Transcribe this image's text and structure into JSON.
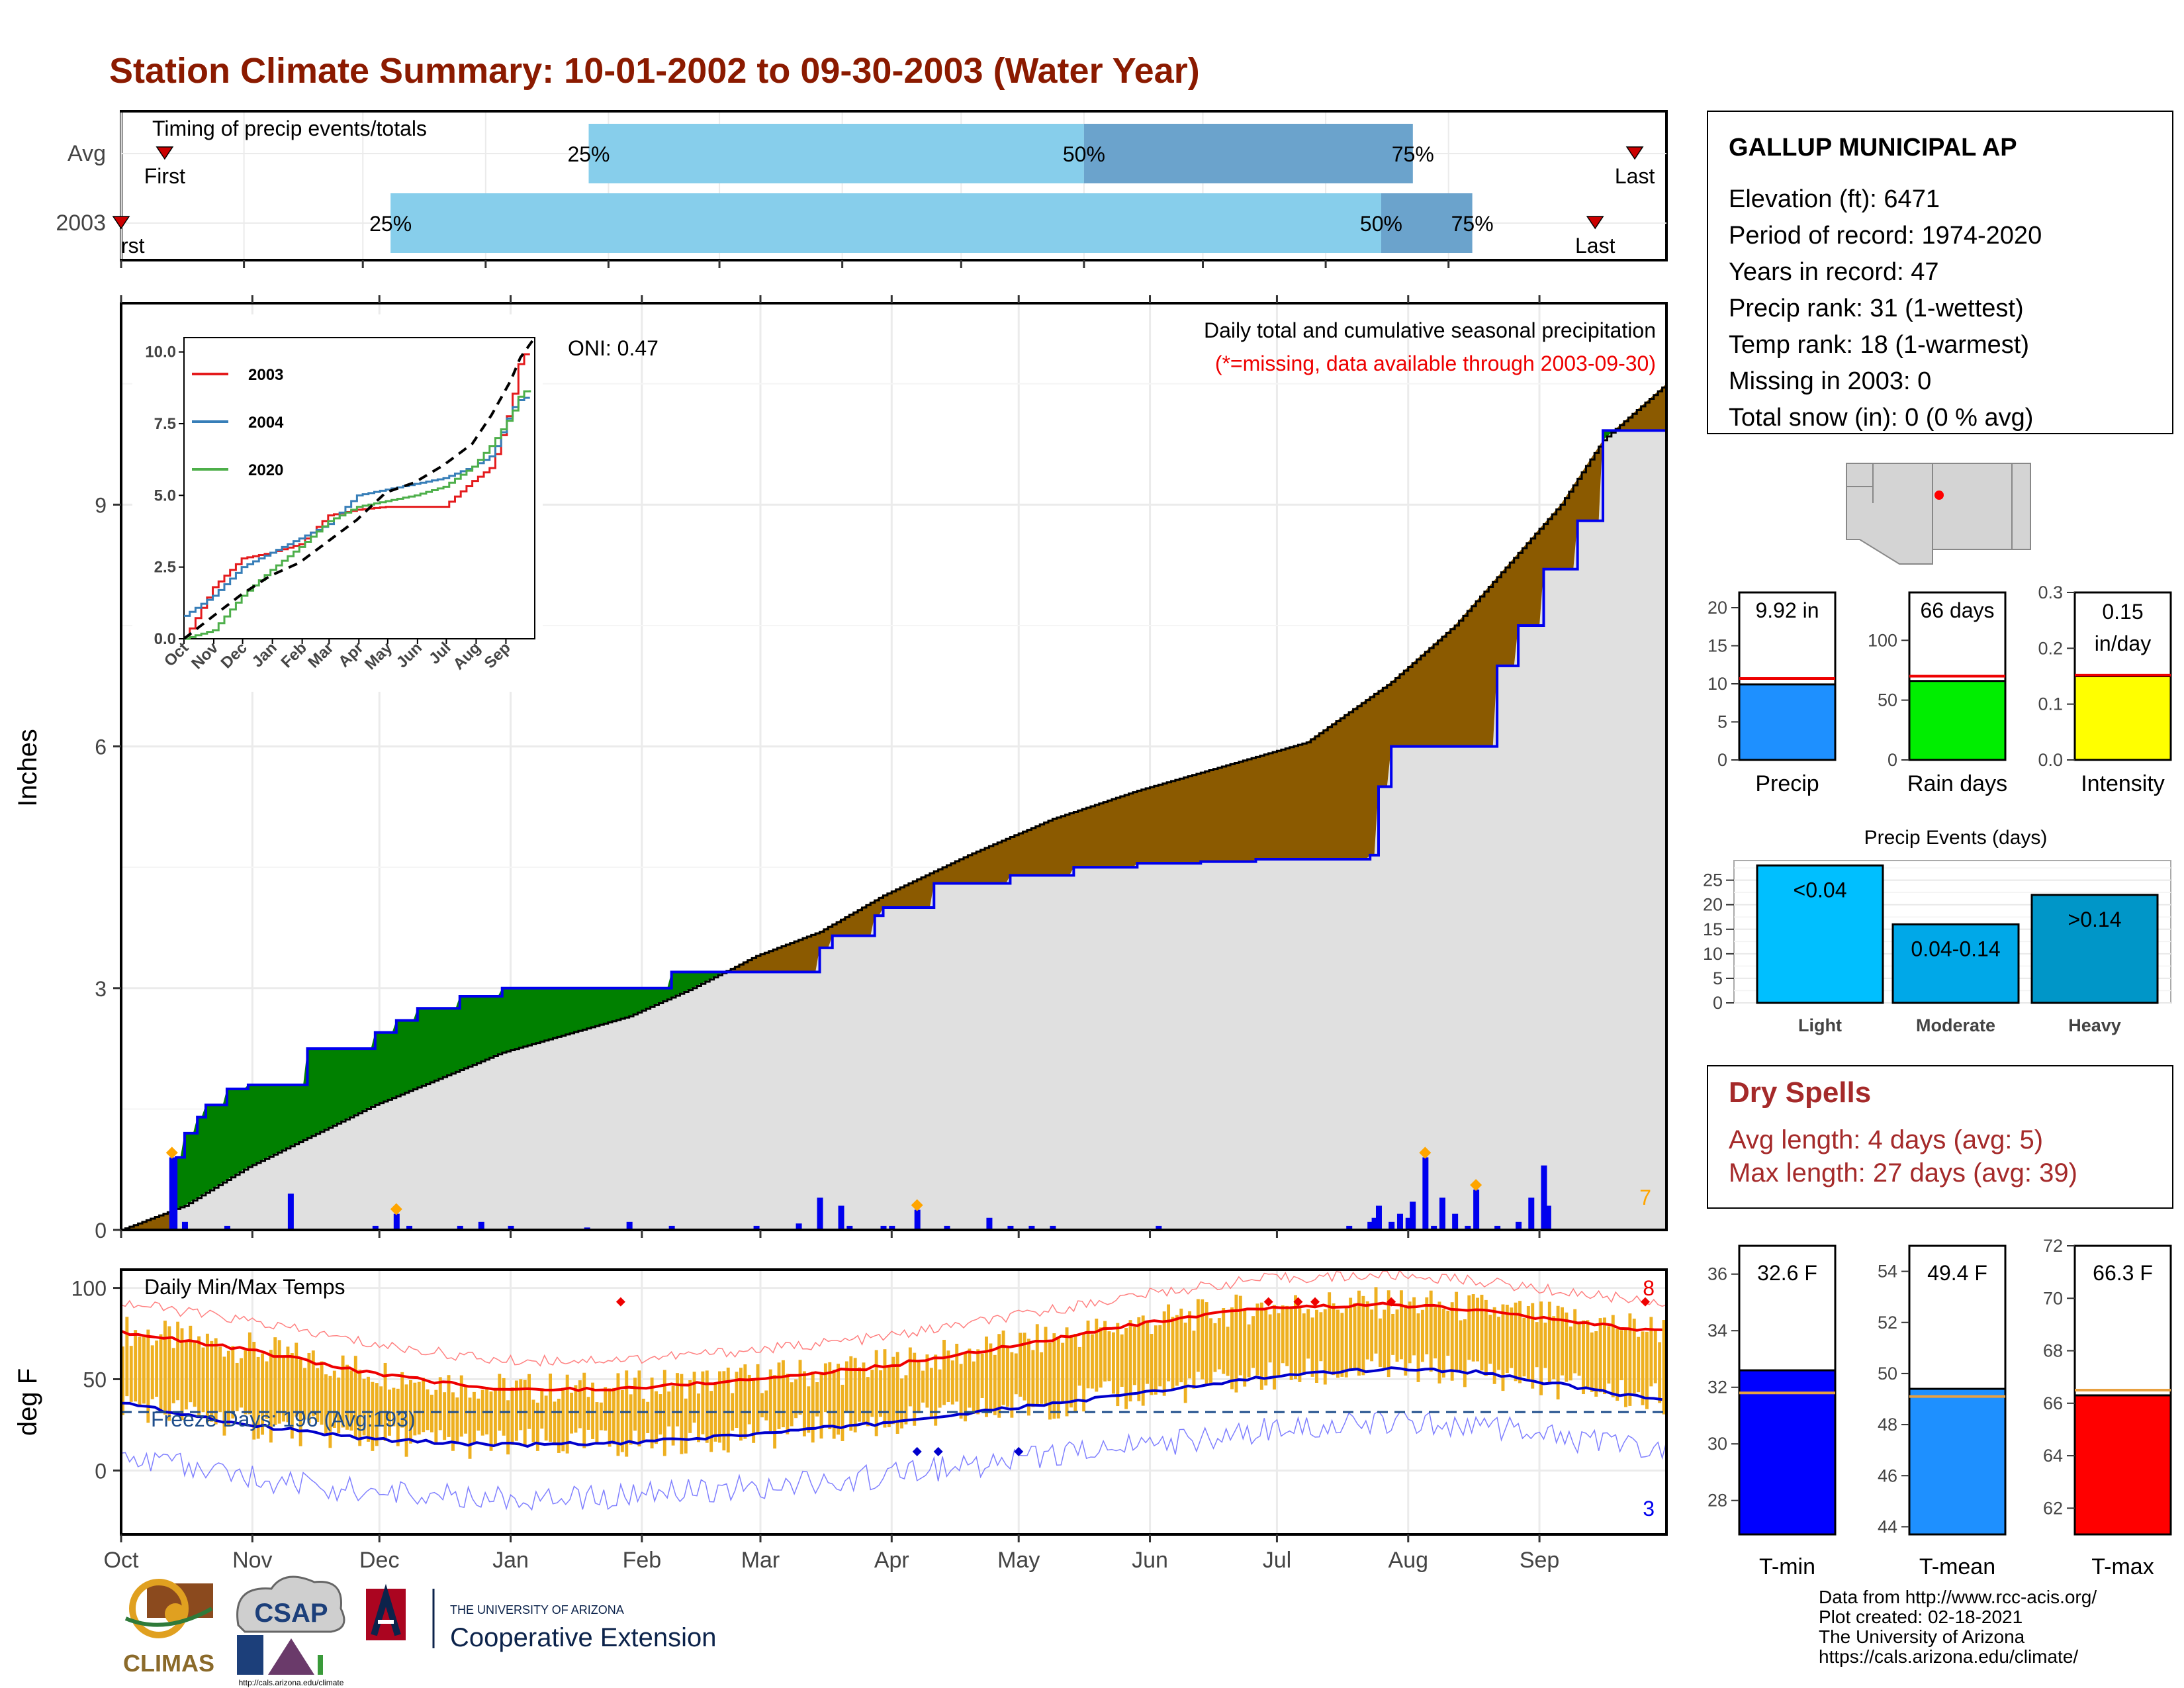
{
  "title": "Station Climate Summary: 10-01-2002 to 09-30-2003 (Water Year)",
  "colors": {
    "title": "#8B1A00",
    "brown": "#8B5A00",
    "green": "#008000",
    "blue": "#0000EE",
    "grey": "#E0E0E0",
    "orange": "#FFA500",
    "tempbar": "#EEB020",
    "red": "#EE0000",
    "lightblue": "#87CEEB",
    "midblue": "#6BA3CC",
    "darkred": "#A52A2A"
  },
  "timing": {
    "label": "Timing of precip events/totals",
    "rows": [
      "Avg",
      "2003"
    ],
    "pct_labels": [
      "25%",
      "50%",
      "75%"
    ],
    "first_label": "First",
    "first_label_2003": "rst",
    "last_label": "Last"
  },
  "station": {
    "name": "GALLUP MUNICIPAL AP",
    "lines": [
      "Elevation (ft): 6471",
      "Period of record: 1974-2020",
      "Years in record: 47",
      "Precip rank: 31 (1-wettest)",
      "Temp rank: 18 (1-warmest)",
      "Missing in 2003: 0",
      "Total snow (in): 0 (0 % avg)"
    ]
  },
  "main": {
    "ylabel": "Inches",
    "oni": "ONI: 0.47",
    "note1": "Daily total and cumulative seasonal precipitation",
    "note2": "(*=missing, data available through 2003-09-30)",
    "count_label": "7",
    "yticks": [
      "0",
      "3",
      "6",
      "9"
    ]
  },
  "inset": {
    "legend": [
      "2003",
      "2004",
      "2020"
    ],
    "yticks": [
      "0.0",
      "2.5",
      "5.0",
      "7.5",
      "10.0"
    ],
    "xticks": [
      "Oct",
      "Nov",
      "Dec",
      "Jan",
      "Feb",
      "Mar",
      "Apr",
      "May",
      "Jun",
      "Jul",
      "Aug",
      "Sep"
    ]
  },
  "months": [
    "Oct",
    "Nov",
    "Dec",
    "Jan",
    "Feb",
    "Mar",
    "Apr",
    "May",
    "Jun",
    "Jul",
    "Aug",
    "Sep"
  ],
  "temps": {
    "ylabel": "deg F",
    "label": "Daily Min/Max Temps",
    "freeze": "Freeze Days: 196 (Avg:193)",
    "high_count": "8",
    "low_count": "3",
    "yticks": [
      "0",
      "50",
      "100"
    ]
  },
  "small_bars": [
    {
      "label": "Precip",
      "value_text": "9.92 in",
      "yticks": [
        "0",
        "5",
        "10",
        "15",
        "20"
      ],
      "color": "#1E90FF"
    },
    {
      "label": "Rain days",
      "value_text": "66 days",
      "yticks": [
        "0",
        "50",
        "100"
      ],
      "color": "#00EE00"
    },
    {
      "label": "Intensity",
      "value_text": "0.15 in/day",
      "value_line1": "0.15",
      "value_line2": "in/day",
      "yticks": [
        "0.0",
        "0.1",
        "0.2",
        "0.3"
      ],
      "color": "#FFFF00"
    }
  ],
  "events": {
    "title": "Precip Events (days)",
    "yticks": [
      "0",
      "5",
      "10",
      "15",
      "20",
      "25"
    ],
    "bars": [
      {
        "cat": "Light",
        "label": "<0.04",
        "color": "#00BFFF"
      },
      {
        "cat": "Moderate",
        "label": "0.04-0.14",
        "color": "#00A8E8"
      },
      {
        "cat": "Heavy",
        "label": ">0.14",
        "color": "#0096C8"
      }
    ]
  },
  "dry": {
    "title": "Dry Spells",
    "line1": "Avg length: 4 days (avg: 5)",
    "line2": "Max length: 27 days (avg: 39)"
  },
  "temp_bars": [
    {
      "label": "T-min",
      "value_text": "32.6 F",
      "yticks": [
        "28",
        "30",
        "32",
        "34",
        "36"
      ],
      "color": "#0000FF"
    },
    {
      "label": "T-mean",
      "value_text": "49.4 F",
      "yticks": [
        "44",
        "46",
        "48",
        "50",
        "52",
        "54"
      ],
      "color": "#1E90FF"
    },
    {
      "label": "T-max",
      "value_text": "66.3 F",
      "yticks": [
        "62",
        "64",
        "66",
        "68",
        "70",
        "72"
      ],
      "color": "#FF0000"
    }
  ],
  "footer": {
    "lines": [
      "Data from http://www.rcc-acis.org/",
      "Plot created: 02-18-2021",
      "The University of Arizona",
      "https://cals.arizona.edu/climate/"
    ],
    "climas": "CLIMAS",
    "csap": "CSAP",
    "csap_url": "http://cals.arizona.edu/climate",
    "ua1": "THE UNIVERSITY OF ARIZONA",
    "ua2": "Cooperative Extension"
  },
  "chart_data": [
    {
      "type": "bar",
      "name": "timing",
      "categories": [
        "Avg",
        "2003"
      ],
      "series": [
        {
          "name": "Avg",
          "values": {
            "first": 11,
            "p25": 118,
            "p50": 243,
            "p75": 326,
            "last": 382
          }
        },
        {
          "name": "2003",
          "values": {
            "first": 0,
            "p25": 68,
            "p50": 318,
            "p75": 341,
            "last": 372
          }
        }
      ],
      "xlim": [
        0,
        390
      ]
    },
    {
      "type": "area",
      "name": "cumulative precipitation",
      "ylabel": "Inches",
      "ylim": [
        0,
        11.5
      ],
      "xlim": [
        0,
        365
      ],
      "avg_cumulative": {
        "x": [
          0,
          15,
          30,
          60,
          90,
          120,
          135,
          150,
          165,
          180,
          200,
          220,
          240,
          260,
          280,
          300,
          315,
          325,
          340,
          350,
          365
        ],
        "y": [
          0,
          0.3,
          0.78,
          1.55,
          2.2,
          2.65,
          3.0,
          3.4,
          3.7,
          4.15,
          4.65,
          5.1,
          5.45,
          5.75,
          6.05,
          6.8,
          7.5,
          8.1,
          9.0,
          9.8,
          10.5
        ]
      },
      "y2003_cumulative": {
        "x": [
          0,
          12,
          13,
          15,
          18,
          20,
          25,
          30,
          40,
          44,
          55,
          60,
          65,
          70,
          80,
          90,
          100,
          110,
          120,
          125,
          130,
          140,
          150,
          165,
          168,
          170,
          178,
          180,
          192,
          210,
          225,
          240,
          255,
          268,
          287,
          295,
          297,
          300,
          320,
          325,
          330,
          336,
          340,
          344,
          346,
          350,
          355,
          360,
          365
        ],
        "y": [
          0,
          0.02,
          0.9,
          1.2,
          1.4,
          1.55,
          1.75,
          1.8,
          1.8,
          2.25,
          2.25,
          2.45,
          2.6,
          2.75,
          2.9,
          3.0,
          3.0,
          3.0,
          3.0,
          3.0,
          3.2,
          3.2,
          3.2,
          3.5,
          3.65,
          3.65,
          3.9,
          4.0,
          4.3,
          4.4,
          4.5,
          4.55,
          4.57,
          4.6,
          4.6,
          4.65,
          5.5,
          6.0,
          6.0,
          7.0,
          7.5,
          8.2,
          8.2,
          8.8,
          8.8,
          9.92,
          9.92,
          9.92,
          9.92
        ]
      },
      "daily": {
        "x": [
          12,
          15,
          25,
          40,
          60,
          65,
          68,
          80,
          85,
          92,
          110,
          120,
          130,
          150,
          160,
          165,
          170,
          172,
          180,
          182,
          188,
          195,
          205,
          210,
          215,
          220,
          245,
          290,
          295,
          296,
          297,
          300,
          302,
          304,
          305,
          308,
          310,
          312,
          315,
          318,
          320,
          325,
          330,
          333,
          336,
          337
        ],
        "y": [
          0.9,
          0.1,
          0.05,
          0.45,
          0.05,
          0.2,
          0.05,
          0.05,
          0.1,
          0.05,
          0.03,
          0.1,
          0.05,
          0.05,
          0.08,
          0.4,
          0.3,
          0.05,
          0.05,
          0.05,
          0.25,
          0.05,
          0.15,
          0.05,
          0.05,
          0.05,
          0.05,
          0.05,
          0.1,
          0.15,
          0.3,
          0.1,
          0.2,
          0.15,
          0.35,
          0.9,
          0.05,
          0.4,
          0.2,
          0.05,
          0.5,
          0.05,
          0.1,
          0.4,
          0.8,
          0.3
        ]
      }
    },
    {
      "type": "line",
      "name": "inset cumulative",
      "ylim": [
        0,
        10.5
      ],
      "series": [
        {
          "name": "2003",
          "x": [
            0,
            30,
            60,
            90,
            120,
            150,
            180,
            210,
            240,
            270,
            300,
            320,
            340,
            350,
            365
          ],
          "y": [
            0,
            1.8,
            2.8,
            3.0,
            3.3,
            4.3,
            4.5,
            4.6,
            4.6,
            4.6,
            5.5,
            6.0,
            8.2,
            9.92,
            9.92
          ]
        },
        {
          "name": "2004",
          "x": [
            0,
            30,
            60,
            90,
            120,
            150,
            180,
            210,
            240,
            270,
            300,
            320,
            340,
            350,
            365
          ],
          "y": [
            0.8,
            1.5,
            2.5,
            3.0,
            3.5,
            4.0,
            5.0,
            5.2,
            5.4,
            5.6,
            6.0,
            6.4,
            8.0,
            8.4,
            8.4
          ]
        },
        {
          "name": "2020",
          "x": [
            0,
            30,
            60,
            90,
            120,
            150,
            180,
            210,
            240,
            270,
            300,
            320,
            340,
            350,
            365
          ],
          "y": [
            0,
            0.3,
            1.5,
            2.4,
            3.2,
            4.1,
            4.6,
            4.8,
            5.0,
            5.3,
            6.0,
            6.8,
            7.8,
            8.6,
            8.7
          ]
        },
        {
          "name": "Avg",
          "x": [
            0,
            30,
            60,
            90,
            120,
            150,
            180,
            210,
            240,
            270,
            300,
            320,
            340,
            350,
            365
          ],
          "y": [
            0,
            0.78,
            1.55,
            2.2,
            2.65,
            3.4,
            4.15,
            5.1,
            5.45,
            6.05,
            6.8,
            7.8,
            9.0,
            9.8,
            10.5
          ]
        }
      ]
    },
    {
      "type": "line",
      "name": "daily temps",
      "ylabel": "deg F",
      "ylim": [
        -35,
        110
      ],
      "avg_max": {
        "x": [
          0,
          30,
          60,
          90,
          120,
          150,
          180,
          210,
          240,
          270,
          300,
          320,
          340,
          365
        ],
        "y": [
          76,
          66,
          53,
          44,
          45,
          50,
          57,
          68,
          80,
          89,
          91,
          88,
          82,
          76
        ]
      },
      "avg_min": {
        "x": [
          0,
          30,
          60,
          90,
          120,
          150,
          180,
          210,
          240,
          270,
          300,
          320,
          340,
          365
        ],
        "y": [
          37,
          25,
          17,
          14,
          15,
          20,
          26,
          34,
          42,
          51,
          56,
          54,
          47,
          38
        ]
      },
      "freeze_line": 32
    },
    {
      "type": "bar",
      "name": "precip summary",
      "categories": [
        "Precip",
        "Rain days",
        "Intensity"
      ],
      "values": [
        9.92,
        66,
        0.15
      ],
      "averages": [
        10.7,
        70,
        0.152
      ]
    },
    {
      "type": "bar",
      "name": "Precip Events (days)",
      "categories": [
        "Light",
        "Moderate",
        "Heavy"
      ],
      "values": [
        28,
        16,
        22
      ],
      "ylim": [
        0,
        29
      ]
    },
    {
      "type": "bar",
      "name": "temperature summary",
      "categories": [
        "T-min",
        "T-mean",
        "T-max"
      ],
      "values": [
        32.6,
        49.4,
        66.3
      ],
      "averages": [
        31.8,
        49.1,
        66.5
      ]
    }
  ]
}
